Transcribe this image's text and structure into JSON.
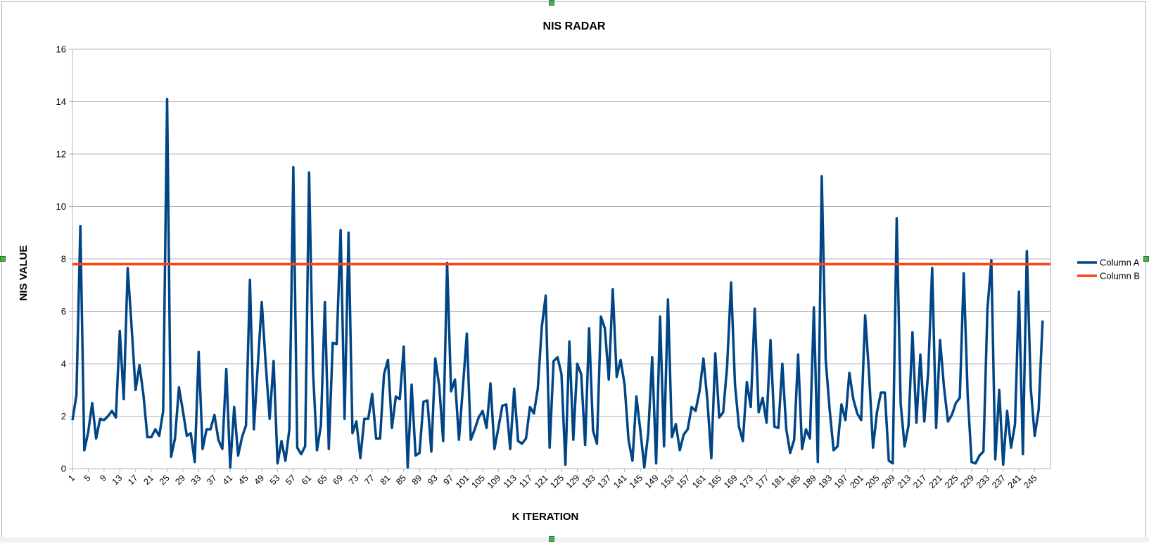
{
  "chart_data": {
    "type": "line",
    "title": "NIS RADAR",
    "xlabel": "K ITERATION",
    "ylabel": "NIS VALUE",
    "ylim": [
      0,
      16
    ],
    "yticks": [
      0,
      2,
      4,
      6,
      8,
      10,
      12,
      14,
      16
    ],
    "grid": true,
    "legend_position": "right",
    "x_tick_labels": [
      "1",
      "5",
      "9",
      "13",
      "17",
      "21",
      "25",
      "29",
      "33",
      "37",
      "41",
      "45",
      "49",
      "53",
      "57",
      "61",
      "65",
      "69",
      "73",
      "77",
      "81",
      "85",
      "89",
      "93",
      "97",
      "101",
      "105",
      "109",
      "113",
      "117",
      "121",
      "125",
      "129",
      "133",
      "137",
      "141",
      "145",
      "149",
      "153",
      "157",
      "161",
      "165",
      "169",
      "173",
      "177",
      "181",
      "185",
      "189",
      "193",
      "197",
      "201",
      "205",
      "209",
      "213",
      "217",
      "221",
      "225",
      "229",
      "233",
      "237",
      "241",
      "245"
    ],
    "x_first": 1,
    "x_last": 249,
    "series": [
      {
        "name": "Column A",
        "color": "#004586",
        "values": [
          1.85,
          2.8,
          9.25,
          0.7,
          1.4,
          2.5,
          1.15,
          1.9,
          1.85,
          2.0,
          2.2,
          1.95,
          5.25,
          2.65,
          7.65,
          5.4,
          3.0,
          3.95,
          2.8,
          1.2,
          1.2,
          1.5,
          1.25,
          2.2,
          14.1,
          0.45,
          1.15,
          3.1,
          2.2,
          1.25,
          1.35,
          0.25,
          4.45,
          0.75,
          1.5,
          1.5,
          2.05,
          1.1,
          0.75,
          3.8,
          0.05,
          2.35,
          0.5,
          1.2,
          1.65,
          7.2,
          1.5,
          3.95,
          6.35,
          4.0,
          1.9,
          4.1,
          0.2,
          1.05,
          0.3,
          1.5,
          11.5,
          0.8,
          0.55,
          0.85,
          11.3,
          3.7,
          0.7,
          1.65,
          6.35,
          0.75,
          4.8,
          4.75,
          9.1,
          1.9,
          9.0,
          1.35,
          1.8,
          0.4,
          1.9,
          1.9,
          2.85,
          1.15,
          1.15,
          3.6,
          4.15,
          1.55,
          2.75,
          2.65,
          4.65,
          0.05,
          3.2,
          0.5,
          0.6,
          2.55,
          2.6,
          0.65,
          4.2,
          3.15,
          1.05,
          7.85,
          2.95,
          3.4,
          1.1,
          3.1,
          5.15,
          1.1,
          1.5,
          1.95,
          2.2,
          1.55,
          3.25,
          0.75,
          1.55,
          2.4,
          2.45,
          0.75,
          3.05,
          1.05,
          0.95,
          1.15,
          2.35,
          2.1,
          3.05,
          5.4,
          6.6,
          0.8,
          4.1,
          4.25,
          3.6,
          0.15,
          4.85,
          1.1,
          4.0,
          3.6,
          0.9,
          5.35,
          1.45,
          0.95,
          5.8,
          5.35,
          3.4,
          6.85,
          3.5,
          4.15,
          3.2,
          1.1,
          0.3,
          2.75,
          1.45,
          0.05,
          1.35,
          4.25,
          0.2,
          5.8,
          0.85,
          6.45,
          1.2,
          1.7,
          0.7,
          1.3,
          1.5,
          2.35,
          2.2,
          2.95,
          4.2,
          2.6,
          0.4,
          4.4,
          1.95,
          2.15,
          3.9,
          7.1,
          3.2,
          1.6,
          1.05,
          3.3,
          2.35,
          6.1,
          2.15,
          2.7,
          1.75,
          4.9,
          1.6,
          1.55,
          4.0,
          1.5,
          0.6,
          1.1,
          4.35,
          0.75,
          1.5,
          1.15,
          6.15,
          0.25,
          11.15,
          4.15,
          2.25,
          0.7,
          0.85,
          2.45,
          1.85,
          3.65,
          2.65,
          2.1,
          1.85,
          5.85,
          3.6,
          0.8,
          2.15,
          2.9,
          2.9,
          0.3,
          0.2,
          9.55,
          2.5,
          0.85,
          1.65,
          5.2,
          1.75,
          4.35,
          1.8,
          3.7,
          7.65,
          1.55,
          4.9,
          3.1,
          1.8,
          2.05,
          2.5,
          2.7,
          7.45,
          2.8,
          0.25,
          0.2,
          0.5,
          0.65,
          6.05,
          7.95,
          0.35,
          3.0,
          0.15,
          2.2,
          0.8,
          1.7,
          6.75,
          0.55,
          8.3,
          3.05,
          1.25,
          2.25,
          5.65
        ]
      },
      {
        "name": "Column B",
        "color": "#ff420e",
        "values": [
          7.8,
          7.8
        ]
      }
    ]
  }
}
